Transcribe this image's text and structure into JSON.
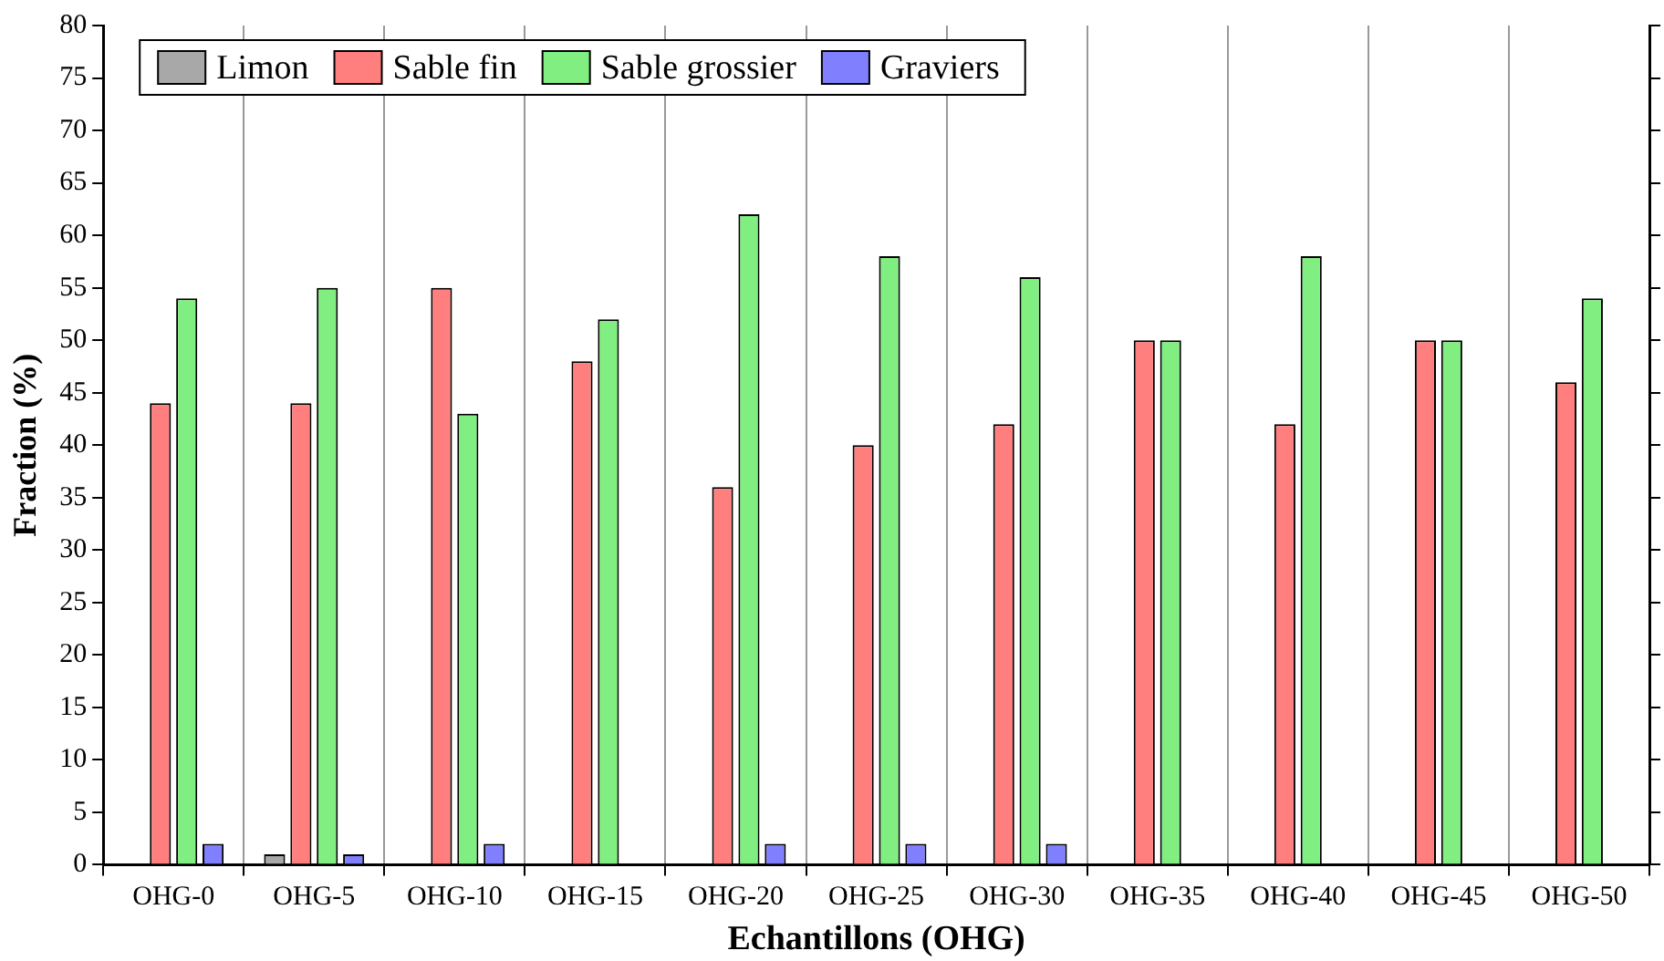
{
  "chart_data": {
    "type": "bar",
    "xlabel": "Echantillons (OHG)",
    "ylabel": "Fraction (%)",
    "categories": [
      "OHG-0",
      "OHG-5",
      "OHG-10",
      "OHG-15",
      "OHG-20",
      "OHG-25",
      "OHG-30",
      "OHG-35",
      "OHG-40",
      "OHG-45",
      "OHG-50"
    ],
    "series": [
      {
        "name": "Limon",
        "color": "#a8a8a8",
        "values": [
          null,
          1,
          null,
          null,
          null,
          null,
          null,
          null,
          null,
          null,
          null
        ]
      },
      {
        "name": "Sable fin",
        "color": "#ff7f7f",
        "values": [
          44,
          44,
          55,
          48,
          36,
          40,
          42,
          50,
          42,
          50,
          46
        ]
      },
      {
        "name": "Sable grossier",
        "color": "#80ee80",
        "values": [
          54,
          55,
          43,
          52,
          62,
          58,
          56,
          50,
          58,
          50,
          54
        ]
      },
      {
        "name": "Graviers",
        "color": "#8080ff",
        "values": [
          2,
          1,
          2,
          null,
          2,
          2,
          2,
          null,
          null,
          null,
          null
        ]
      }
    ],
    "ylim": [
      0,
      80
    ],
    "yticks": [
      0,
      5,
      10,
      15,
      20,
      25,
      30,
      35,
      40,
      45,
      50,
      55,
      60,
      65,
      70,
      75,
      80
    ],
    "grid": "x",
    "legend": "top left"
  }
}
